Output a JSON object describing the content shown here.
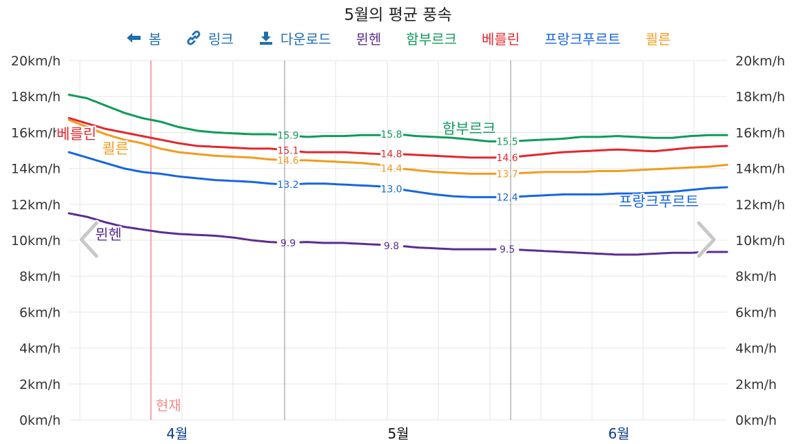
{
  "title": "5월의 평균 풍속",
  "legend": {
    "view": "봄",
    "link": "링크",
    "download": "다운로드",
    "munich": "뮌헨",
    "hamburg": "함부르크",
    "berlin": "베를린",
    "frankfurt": "프랑크푸르트",
    "cologne": "쾰른"
  },
  "colors": {
    "nav_blue": "#1f6fb0",
    "munich": "#5b2c91",
    "hamburg": "#0f9a5a",
    "berlin": "#e3262d",
    "frankfurt": "#1565e0",
    "cologne": "#f29b1d",
    "now_line": "#f28b8b",
    "month_current": "#111111",
    "month_other": "#0b3d91"
  },
  "now_label": "현재",
  "months": [
    "4월",
    "5월",
    "6월"
  ],
  "chart_data": {
    "type": "line",
    "title": "5월의 평균 풍속",
    "unit": "km/h",
    "y_ticks": [
      "0km/h",
      "2km/h",
      "4km/h",
      "6km/h",
      "8km/h",
      "10km/h",
      "12km/h",
      "14km/h",
      "16km/h",
      "18km/h",
      "20km/h"
    ],
    "ylim": [
      0,
      20
    ],
    "x_labels": [
      "4월",
      "5월",
      "6월"
    ],
    "grid": true,
    "series": [
      {
        "name": "함부르크",
        "key": "hamburg",
        "values": [
          18.1,
          17.9,
          17.5,
          17.1,
          16.8,
          16.6,
          16.3,
          16.1,
          16.0,
          15.95,
          15.9,
          15.9,
          15.85,
          15.75,
          15.8,
          15.8,
          15.85,
          15.85,
          15.9,
          15.8,
          15.75,
          15.7,
          15.6,
          15.5,
          15.5,
          15.55,
          15.6,
          15.65,
          15.75,
          15.75,
          15.8,
          15.75,
          15.7,
          15.7,
          15.8,
          15.85,
          15.85
        ],
        "labels": [
          "15.9",
          "15.8",
          "15.5"
        ]
      },
      {
        "name": "베를린",
        "key": "berlin",
        "values": [
          16.8,
          16.5,
          16.2,
          16.0,
          15.8,
          15.6,
          15.4,
          15.25,
          15.2,
          15.15,
          15.1,
          15.1,
          15.0,
          14.9,
          14.9,
          14.9,
          14.85,
          14.8,
          14.8,
          14.75,
          14.7,
          14.65,
          14.6,
          14.6,
          14.6,
          14.7,
          14.8,
          14.9,
          14.95,
          15.0,
          15.05,
          15.0,
          14.95,
          15.05,
          15.15,
          15.2,
          15.25
        ],
        "labels": [
          "15.1",
          "14.8",
          "14.6"
        ]
      },
      {
        "name": "쾰른",
        "key": "cologne",
        "values": [
          16.7,
          16.3,
          15.9,
          15.6,
          15.4,
          15.1,
          14.9,
          14.8,
          14.7,
          14.65,
          14.6,
          14.5,
          14.45,
          14.45,
          14.4,
          14.35,
          14.3,
          14.2,
          14.0,
          13.9,
          13.8,
          13.75,
          13.7,
          13.7,
          13.7,
          13.75,
          13.8,
          13.8,
          13.8,
          13.85,
          13.85,
          13.9,
          13.95,
          14.0,
          14.05,
          14.1,
          14.2
        ],
        "labels": [
          "14.6",
          "14.4",
          "13.7"
        ]
      },
      {
        "name": "프랑크푸르트",
        "key": "frankfurt",
        "values": [
          14.9,
          14.6,
          14.3,
          14.0,
          13.8,
          13.7,
          13.55,
          13.45,
          13.35,
          13.3,
          13.25,
          13.15,
          13.1,
          13.15,
          13.15,
          13.1,
          13.05,
          13.0,
          12.85,
          12.7,
          12.55,
          12.45,
          12.4,
          12.4,
          12.4,
          12.45,
          12.5,
          12.55,
          12.55,
          12.55,
          12.6,
          12.6,
          12.65,
          12.7,
          12.8,
          12.9,
          12.95
        ],
        "labels": [
          "13.2",
          "13.0",
          "12.4"
        ]
      },
      {
        "name": "뮌헨",
        "key": "munich",
        "values": [
          11.5,
          11.3,
          11.0,
          10.75,
          10.6,
          10.45,
          10.35,
          10.3,
          10.25,
          10.15,
          10.0,
          9.9,
          9.85,
          9.9,
          9.85,
          9.85,
          9.8,
          9.75,
          9.7,
          9.6,
          9.55,
          9.5,
          9.5,
          9.5,
          9.5,
          9.45,
          9.4,
          9.35,
          9.3,
          9.25,
          9.2,
          9.2,
          9.25,
          9.3,
          9.3,
          9.35,
          9.35
        ],
        "labels": [
          "9.9",
          "9.8",
          "9.5"
        ]
      }
    ]
  }
}
